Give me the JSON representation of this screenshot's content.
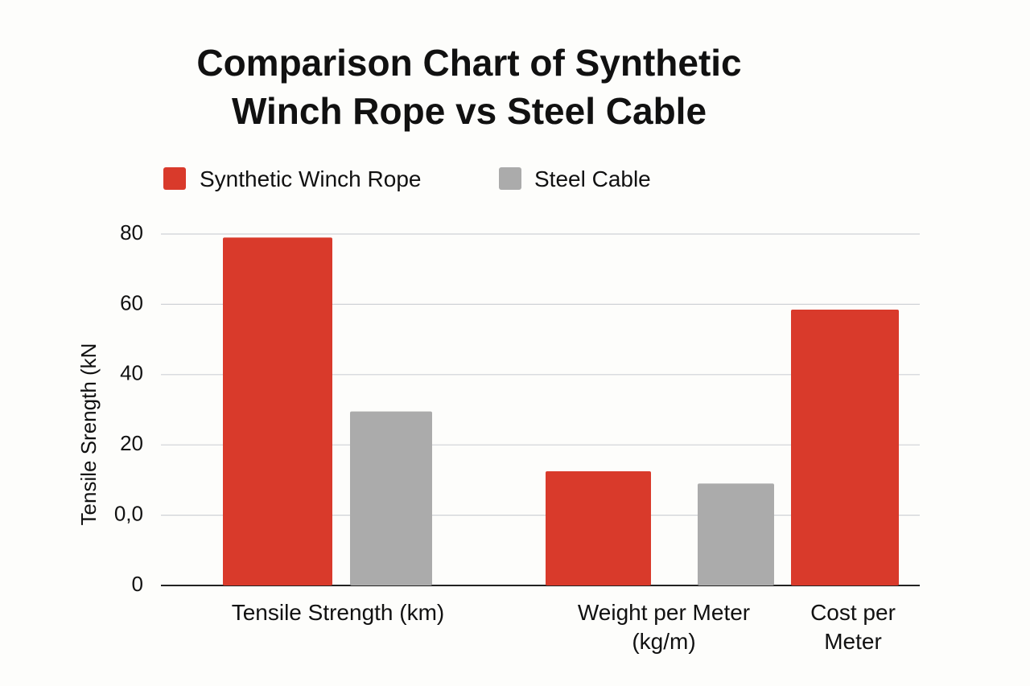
{
  "chart_data": {
    "type": "bar",
    "title": "Comparison Chart of Synthetic Winch Rope vs Steel Cable",
    "y_label": "Tensile Srength (kN",
    "categories": [
      "Tensile Strength (km)",
      "Weight per Meter (kg/m)",
      "Cost per Meter"
    ],
    "series": [
      {
        "name": "Synthetic Winch Rope",
        "color": "#d93a2b",
        "values": [
          79,
          12.5,
          58.5
        ]
      },
      {
        "name": "Steel Cable",
        "color": "#ababab",
        "values": [
          29.5,
          9,
          null
        ]
      }
    ],
    "ylim": [
      -20,
      80
    ],
    "yticks": [
      {
        "value": -20,
        "label": "0"
      },
      {
        "value": 0,
        "label": "0,0"
      },
      20,
      40,
      60,
      80
    ],
    "grid": true
  }
}
